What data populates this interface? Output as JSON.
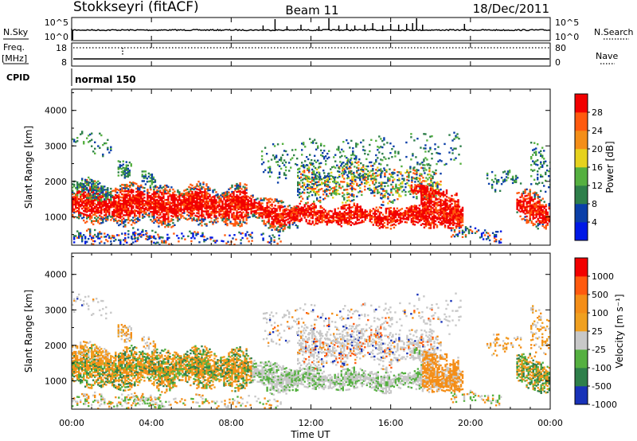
{
  "header": {
    "station": "Stokkseyri (fitACF)",
    "beam": "Beam 11",
    "date": "18/Dec/2011"
  },
  "status_panels": {
    "nsky_label": "N.Sky",
    "nsearch_label": "N.Search",
    "nsky_ticks": [
      "10^5",
      "10^0"
    ],
    "nsearch_ticks": [
      "10^5",
      "10^0"
    ],
    "freq_label_top": "Freq.",
    "freq_label_bottom": "[MHz]",
    "freq_ticks": [
      "18",
      "8"
    ],
    "nave_label": "Nave",
    "nave_ticks": [
      "80",
      "0"
    ],
    "cpid_label": "CPID",
    "cpid_value": "normal 150"
  },
  "chart_data": [
    {
      "type": "heatmap",
      "name": "power",
      "ylabel": "Slant Range [km]",
      "yticks": [
        "1000",
        "2000",
        "3000",
        "4000"
      ],
      "ylim": [
        200,
        4600
      ],
      "colorbar_label": "Power [dB]",
      "colorbar_ticks": [
        "4",
        "8",
        "12",
        "16",
        "20",
        "24",
        "28"
      ],
      "colorbar_colors": [
        "#0018e6",
        "#0b3fa8",
        "#2e7f4a",
        "#55b040",
        "#e6d21e",
        "#f48e18",
        "#ff5a0f",
        "#f20000"
      ],
      "xlim_hours": [
        0,
        24
      ]
    },
    {
      "type": "heatmap",
      "name": "velocity",
      "ylabel": "Slant Range [km]",
      "yticks": [
        "1000",
        "2000",
        "3000",
        "4000"
      ],
      "ylim": [
        200,
        4600
      ],
      "colorbar_label": "Velocity [m s⁻¹]",
      "colorbar_ticks": [
        "1000",
        "500",
        "100",
        "25",
        "-25",
        "-100",
        "-500",
        "-1000"
      ],
      "colorbar_colors": [
        "#1832b8",
        "#2e7f4a",
        "#55b040",
        "#c8c8c8",
        "#f0a020",
        "#f48e18",
        "#ff5a0f",
        "#f20000"
      ],
      "xlim_hours": [
        0,
        24
      ]
    }
  ],
  "time_axis": {
    "ticks": [
      "00:00",
      "04:00",
      "08:00",
      "12:00",
      "16:00",
      "20:00",
      "00:00"
    ],
    "label": "Time UT"
  }
}
